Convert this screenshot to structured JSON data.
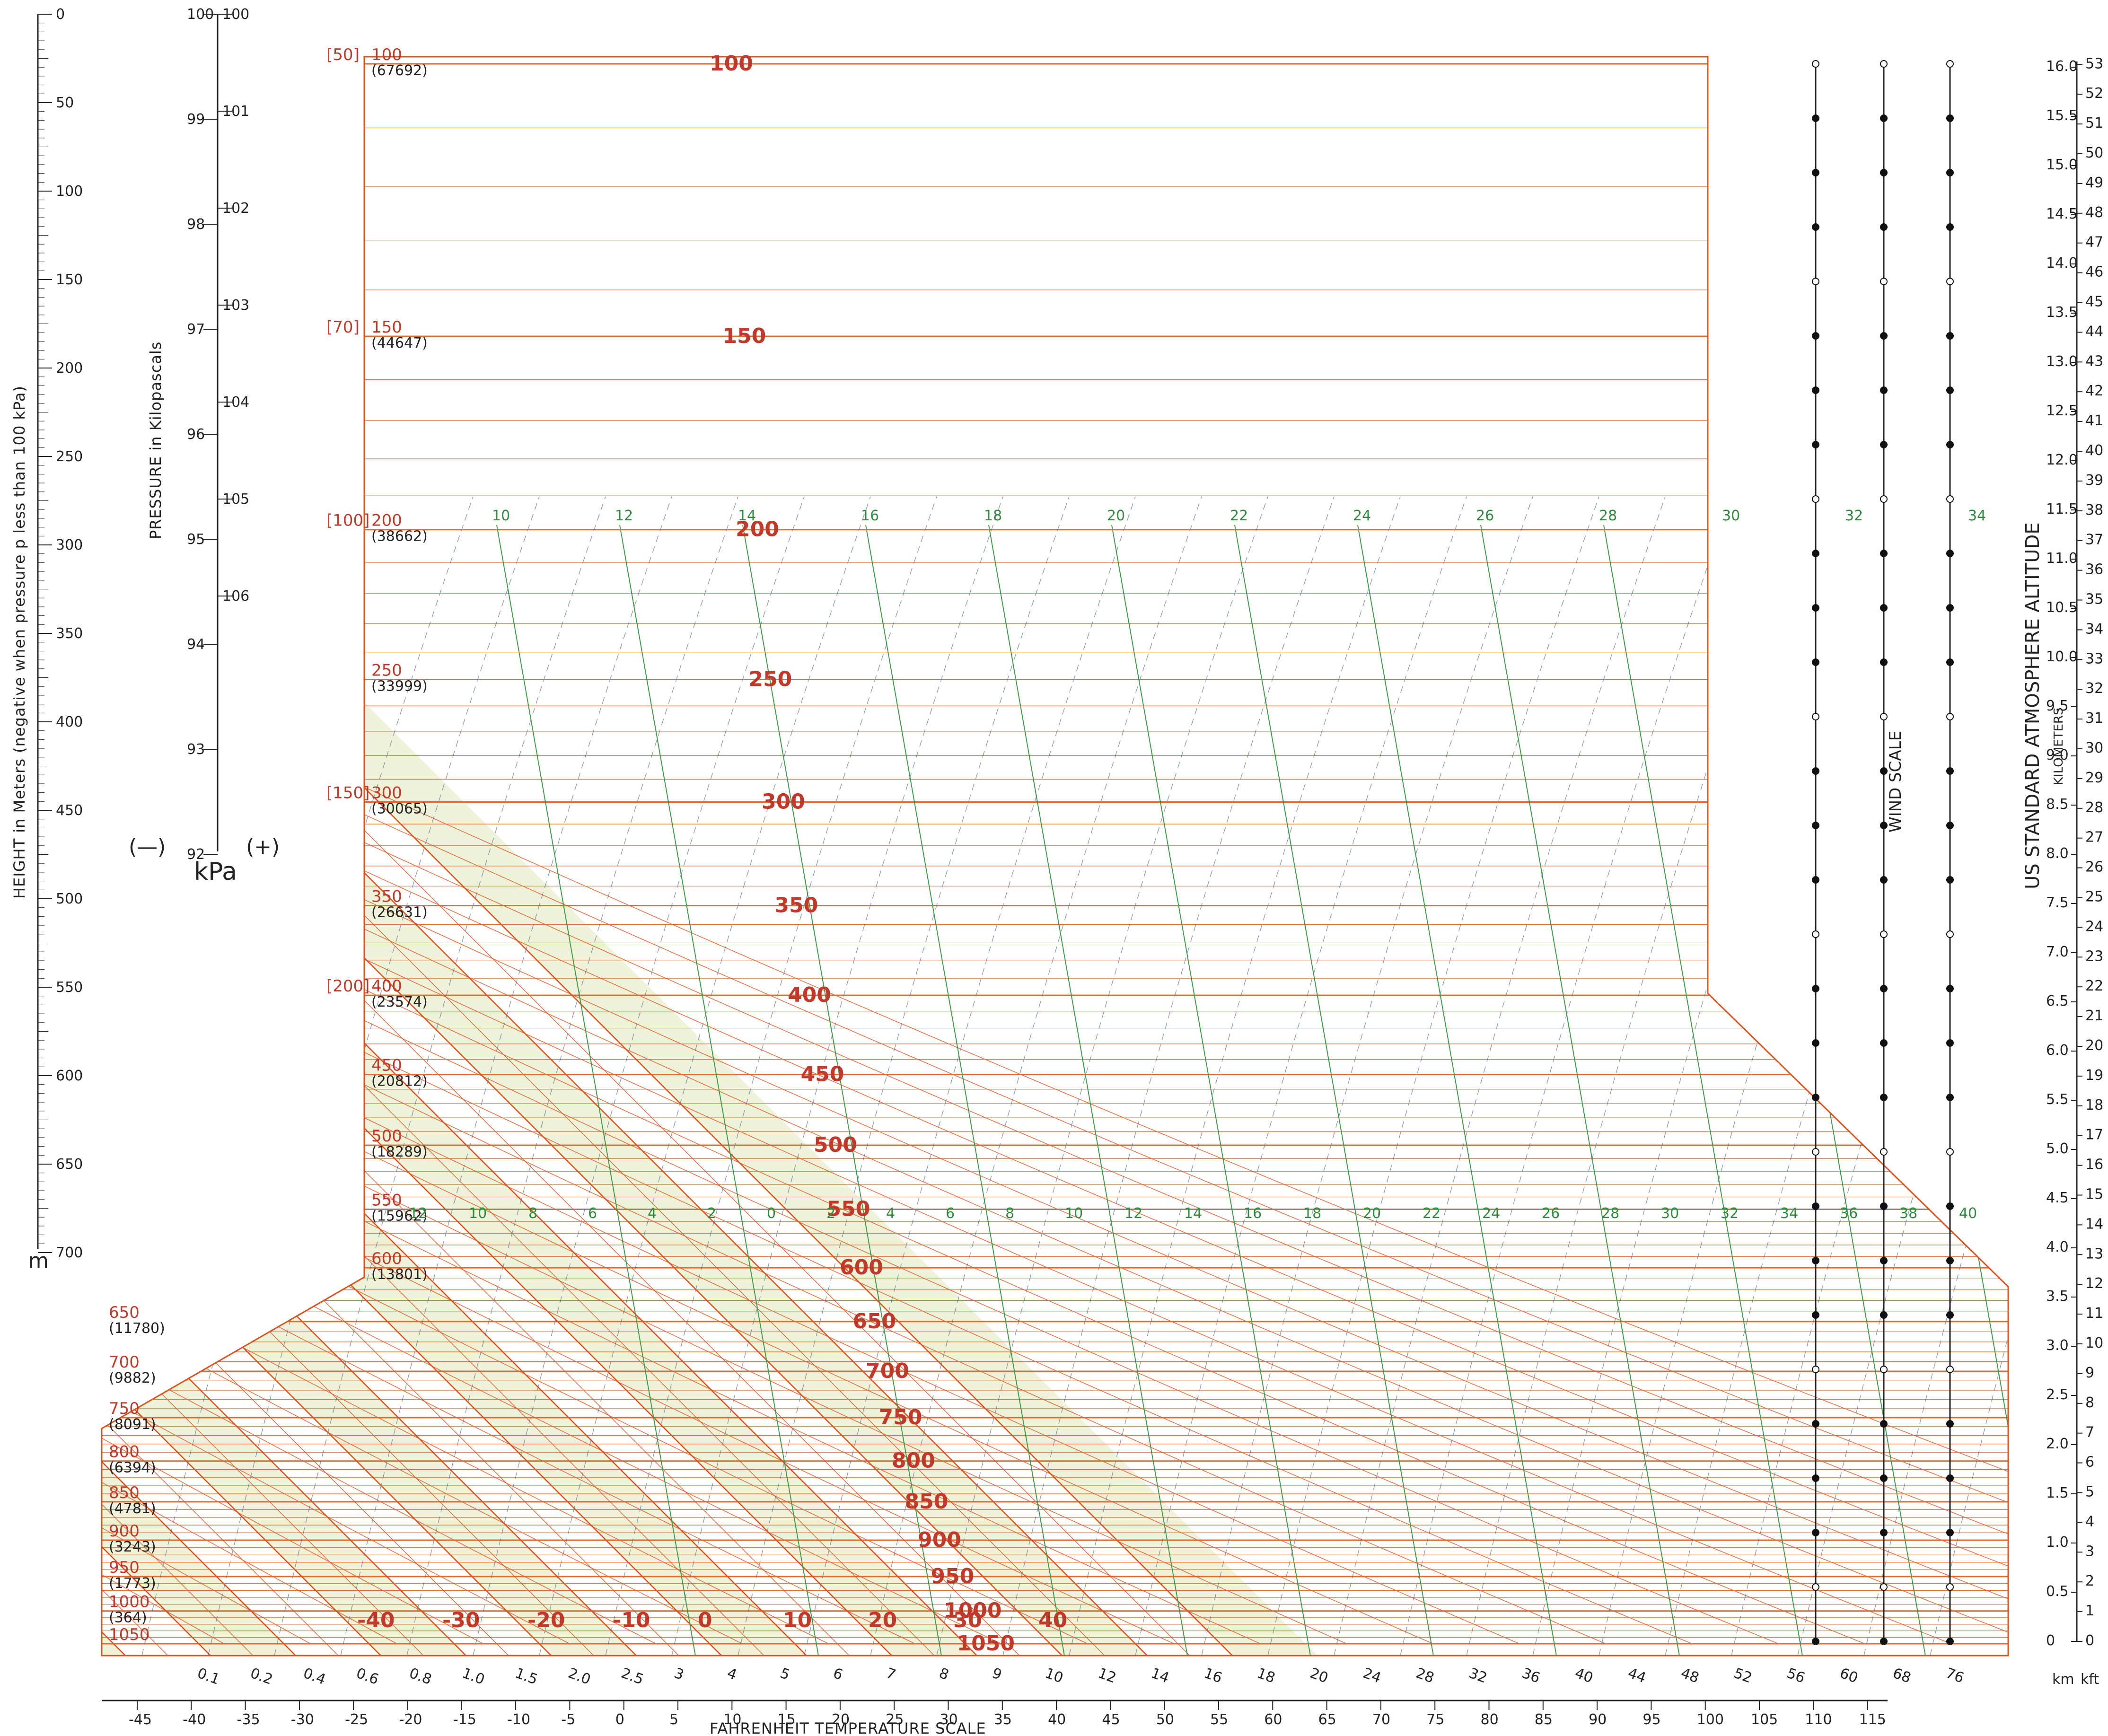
{
  "colors": {
    "isotherm": "#d9541e",
    "isobar": "#e06a2c",
    "band_fill": "#eef2d8",
    "mixing_ratio": "#3c9a48",
    "moist_adiabat": "#5b6f8a",
    "axis": "#222222",
    "pressure_label": "#c0392b",
    "mix_label": "#2e8b3e",
    "kelvin_label": "#1e2a78"
  },
  "chart_data": {
    "type": "skew-t log-p thermodynamic diagram",
    "isobars_hpa": [
      100,
      150,
      200,
      250,
      300,
      350,
      400,
      450,
      500,
      550,
      600,
      650,
      700,
      750,
      800,
      850,
      900,
      950,
      1000,
      1050
    ],
    "isobar_labels": {
      "100": {
        "main": "100",
        "sub": "[50]",
        "ft": "(67692)"
      },
      "150": {
        "main": "150",
        "sub": "[70]",
        "ft": "(44647)"
      },
      "200": {
        "main": "200",
        "sub": "[100]",
        "ft": "(38662)"
      },
      "250": {
        "main": "250",
        "sub": "",
        "ft": "(33999)"
      },
      "300": {
        "main": "300",
        "sub": "[150]",
        "ft": "(30065)"
      },
      "350": {
        "main": "350",
        "sub": "",
        "ft": "(26631)"
      },
      "400": {
        "main": "400",
        "sub": "[200]",
        "ft": "(23574)"
      },
      "450": {
        "main": "450",
        "sub": "",
        "ft": "(20812)"
      },
      "500": {
        "main": "500",
        "sub": "",
        "ft": "(18289)"
      },
      "550": {
        "main": "550",
        "sub": "",
        "ft": "(15962)"
      },
      "600": {
        "main": "600",
        "sub": "",
        "ft": "(13801)"
      },
      "650": {
        "main": "650",
        "sub": "",
        "ft": "(11780)"
      },
      "700": {
        "main": "700",
        "sub": "",
        "ft": "(9882)"
      },
      "750": {
        "main": "750",
        "sub": "",
        "ft": "(8091)"
      },
      "800": {
        "main": "800",
        "sub": "",
        "ft": "(6394)"
      },
      "850": {
        "main": "850",
        "sub": "",
        "ft": "(4781)"
      },
      "900": {
        "main": "900",
        "sub": "",
        "ft": "(3243)"
      },
      "950": {
        "main": "950",
        "sub": "",
        "ft": "(1773)"
      },
      "1000": {
        "main": "1000",
        "sub": "",
        "ft": "(364)"
      },
      "1050": {
        "main": "1050",
        "sub": "",
        "ft": ""
      }
    },
    "isotherms_c": [
      -40,
      -30,
      -20,
      -10,
      0,
      10,
      20,
      30,
      40
    ],
    "isotherm_labels_left": [
      "-40",
      "-30",
      "-20",
      "-10",
      "0",
      "10",
      "20",
      "30",
      "40"
    ],
    "mixing_ratio_labels_top": [
      "10",
      "12",
      "14",
      "16",
      "18",
      "20",
      "22",
      "24",
      "26",
      "28",
      "30",
      "32",
      "34"
    ],
    "mixing_ratio_labels_mid": [
      "12",
      "10",
      "8",
      "6",
      "4",
      "2",
      "0",
      "2",
      "4",
      "6",
      "8",
      "10",
      "12",
      "14",
      "16",
      "18",
      "20",
      "22",
      "24",
      "26",
      "28",
      "30",
      "32",
      "34",
      "36",
      "38",
      "40"
    ],
    "kelvin_bottom_labels": [
      "0.1",
      "0.2",
      "0.4",
      "0.6",
      "0.8",
      "1.0",
      "1.5",
      "2.0",
      "2.5",
      "3",
      "4",
      "5",
      "6",
      "7",
      "8",
      "9",
      "10",
      "12",
      "14",
      "16",
      "18",
      "20",
      "24",
      "28",
      "32",
      "36",
      "40",
      "44",
      "48",
      "52",
      "56",
      "60",
      "68",
      "76"
    ],
    "fahrenheit_ticks": [
      "-45",
      "-40",
      "-35",
      "-30",
      "-25",
      "-20",
      "-15",
      "-10",
      "-5",
      "0",
      "5",
      "10",
      "15",
      "20",
      "25",
      "30",
      "35",
      "40",
      "45",
      "50",
      "55",
      "60",
      "65",
      "70",
      "75",
      "80",
      "85",
      "90",
      "95",
      "100",
      "105",
      "110",
      "115"
    ],
    "height_m_ticks": [
      "0",
      "50",
      "100",
      "150",
      "200",
      "250",
      "300",
      "350",
      "400",
      "450",
      "500",
      "550",
      "600",
      "650",
      "700"
    ],
    "kpa_ticks_left": [
      "100",
      "99",
      "98",
      "97",
      "96",
      "95",
      "94",
      "93",
      "92"
    ],
    "kpa_ticks_right": [
      "100",
      "101",
      "102",
      "103",
      "104",
      "105",
      "106"
    ],
    "km_ticks": [
      "0",
      "0.5",
      "1.0",
      "1.5",
      "2.0",
      "2.5",
      "3.0",
      "3.5",
      "4.0",
      "4.5",
      "5.0",
      "5.5",
      "6.0",
      "6.5",
      "7.0",
      "7.5",
      "8.0",
      "8.5",
      "9.0",
      "9.5",
      "10.0",
      "10.5",
      "11.0",
      "11.5",
      "12.0",
      "12.5",
      "13.0",
      "13.5",
      "14.0",
      "14.5",
      "15.0",
      "15.5",
      "16.0"
    ],
    "kft_ticks": [
      "0",
      "1",
      "2",
      "3",
      "4",
      "5",
      "6",
      "7",
      "8",
      "9",
      "10",
      "11",
      "12",
      "13",
      "14",
      "15",
      "16",
      "17",
      "18",
      "19",
      "20",
      "21",
      "22",
      "23",
      "24",
      "25",
      "26",
      "27",
      "28",
      "29",
      "30",
      "31",
      "32",
      "33",
      "34",
      "35",
      "36",
      "37",
      "38",
      "39",
      "40",
      "41",
      "42",
      "43",
      "44",
      "45",
      "46",
      "47",
      "48",
      "49",
      "50",
      "51",
      "52",
      "53"
    ],
    "grid": "on"
  },
  "texts": {
    "height_axis_title": "HEIGHT in Meters (negative when pressure p less than 100 kPa)",
    "height_unit": "m",
    "kpa_axis_title": "PRESSURE in Kilopascals",
    "kpa_unit": "kPa",
    "minus_sign": "(—)",
    "plus_sign": "(+)",
    "fahrenheit_title": "FAHRENHEIT TEMPERATURE SCALE",
    "wind_scale": "WIND SCALE",
    "altitude_title": "US STANDARD ATMOSPHERE ALTITUDE",
    "altitude_sub": "KILOMETERS",
    "km_unit": "km",
    "kft_unit": "kft"
  }
}
